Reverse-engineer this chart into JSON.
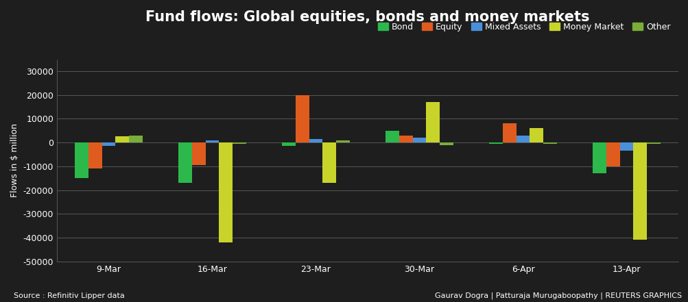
{
  "title": "Fund flows: Global equities, bonds and money markets",
  "ylabel": "Flows in $ million",
  "source_text": "Source : Refinitiv Lipper data",
  "credit_text": "Gaurav Dogra | Patturaja Murugaboopathy | REUTERS GRAPHICS",
  "categories": [
    "9-Mar",
    "16-Mar",
    "23-Mar",
    "30-Mar",
    "6-Apr",
    "13-Apr"
  ],
  "series": {
    "Bond": [
      -15000,
      -17000,
      -1500,
      5000,
      -500,
      -13000
    ],
    "Equity": [
      -11000,
      -9500,
      20000,
      3000,
      8000,
      -10000
    ],
    "Mixed Assets": [
      -1500,
      1000,
      1500,
      2000,
      3000,
      -3500
    ],
    "Money Market": [
      2500,
      -42000,
      -17000,
      17000,
      6000,
      -41000
    ],
    "Other": [
      3000,
      -500,
      1000,
      -1000,
      -500,
      -500
    ]
  },
  "colors": {
    "Bond": "#2db84b",
    "Equity": "#e05c1e",
    "Mixed Assets": "#4a90d9",
    "Money Market": "#c8d42a",
    "Other": "#7aad3a"
  },
  "background_color": "#1e1e1e",
  "plot_bg_color": "#1e1e1e",
  "text_color": "#ffffff",
  "grid_color": "#606060",
  "ylim": [
    -50000,
    35000
  ],
  "yticks": [
    -50000,
    -40000,
    -30000,
    -20000,
    -10000,
    0,
    10000,
    20000,
    30000
  ],
  "bar_width": 0.13,
  "title_fontsize": 15,
  "axis_fontsize": 9,
  "legend_fontsize": 9,
  "tick_fontsize": 9
}
